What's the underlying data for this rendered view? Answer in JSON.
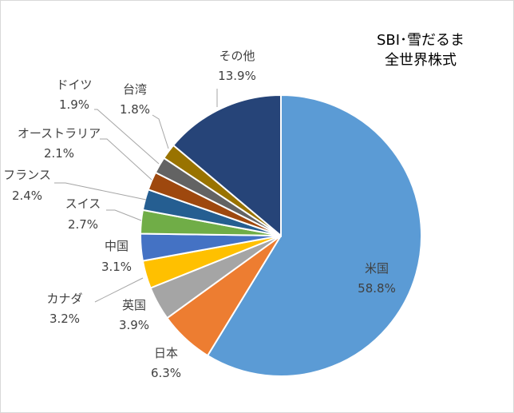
{
  "chart_data": {
    "type": "pie",
    "title_lines": [
      "SBI･雪だるま",
      "全世界株式"
    ],
    "slices": [
      {
        "name": "米国",
        "value": 58.8,
        "label": "58.8%",
        "color": "#5b9bd5"
      },
      {
        "name": "日本",
        "value": 6.3,
        "label": "6.3%",
        "color": "#ed7d31"
      },
      {
        "name": "英国",
        "value": 3.9,
        "label": "3.9%",
        "color": "#a5a5a5"
      },
      {
        "name": "カナダ",
        "value": 3.2,
        "label": "3.2%",
        "color": "#ffc000"
      },
      {
        "name": "中国",
        "value": 3.1,
        "label": "3.1%",
        "color": "#4472c4"
      },
      {
        "name": "スイス",
        "value": 2.7,
        "label": "2.7%",
        "color": "#70ad47"
      },
      {
        "name": "フランス",
        "value": 2.4,
        "label": "2.4%",
        "color": "#255e91"
      },
      {
        "name": "オーストラリア",
        "value": 2.1,
        "label": "2.1%",
        "color": "#9e480e"
      },
      {
        "name": "ドイツ",
        "value": 1.9,
        "label": "1.9%",
        "color": "#636363"
      },
      {
        "name": "台湾",
        "value": 1.8,
        "label": "1.8%",
        "color": "#997300"
      },
      {
        "name": "その他",
        "value": 13.9,
        "label": "13.9%",
        "color": "#264478"
      }
    ]
  }
}
